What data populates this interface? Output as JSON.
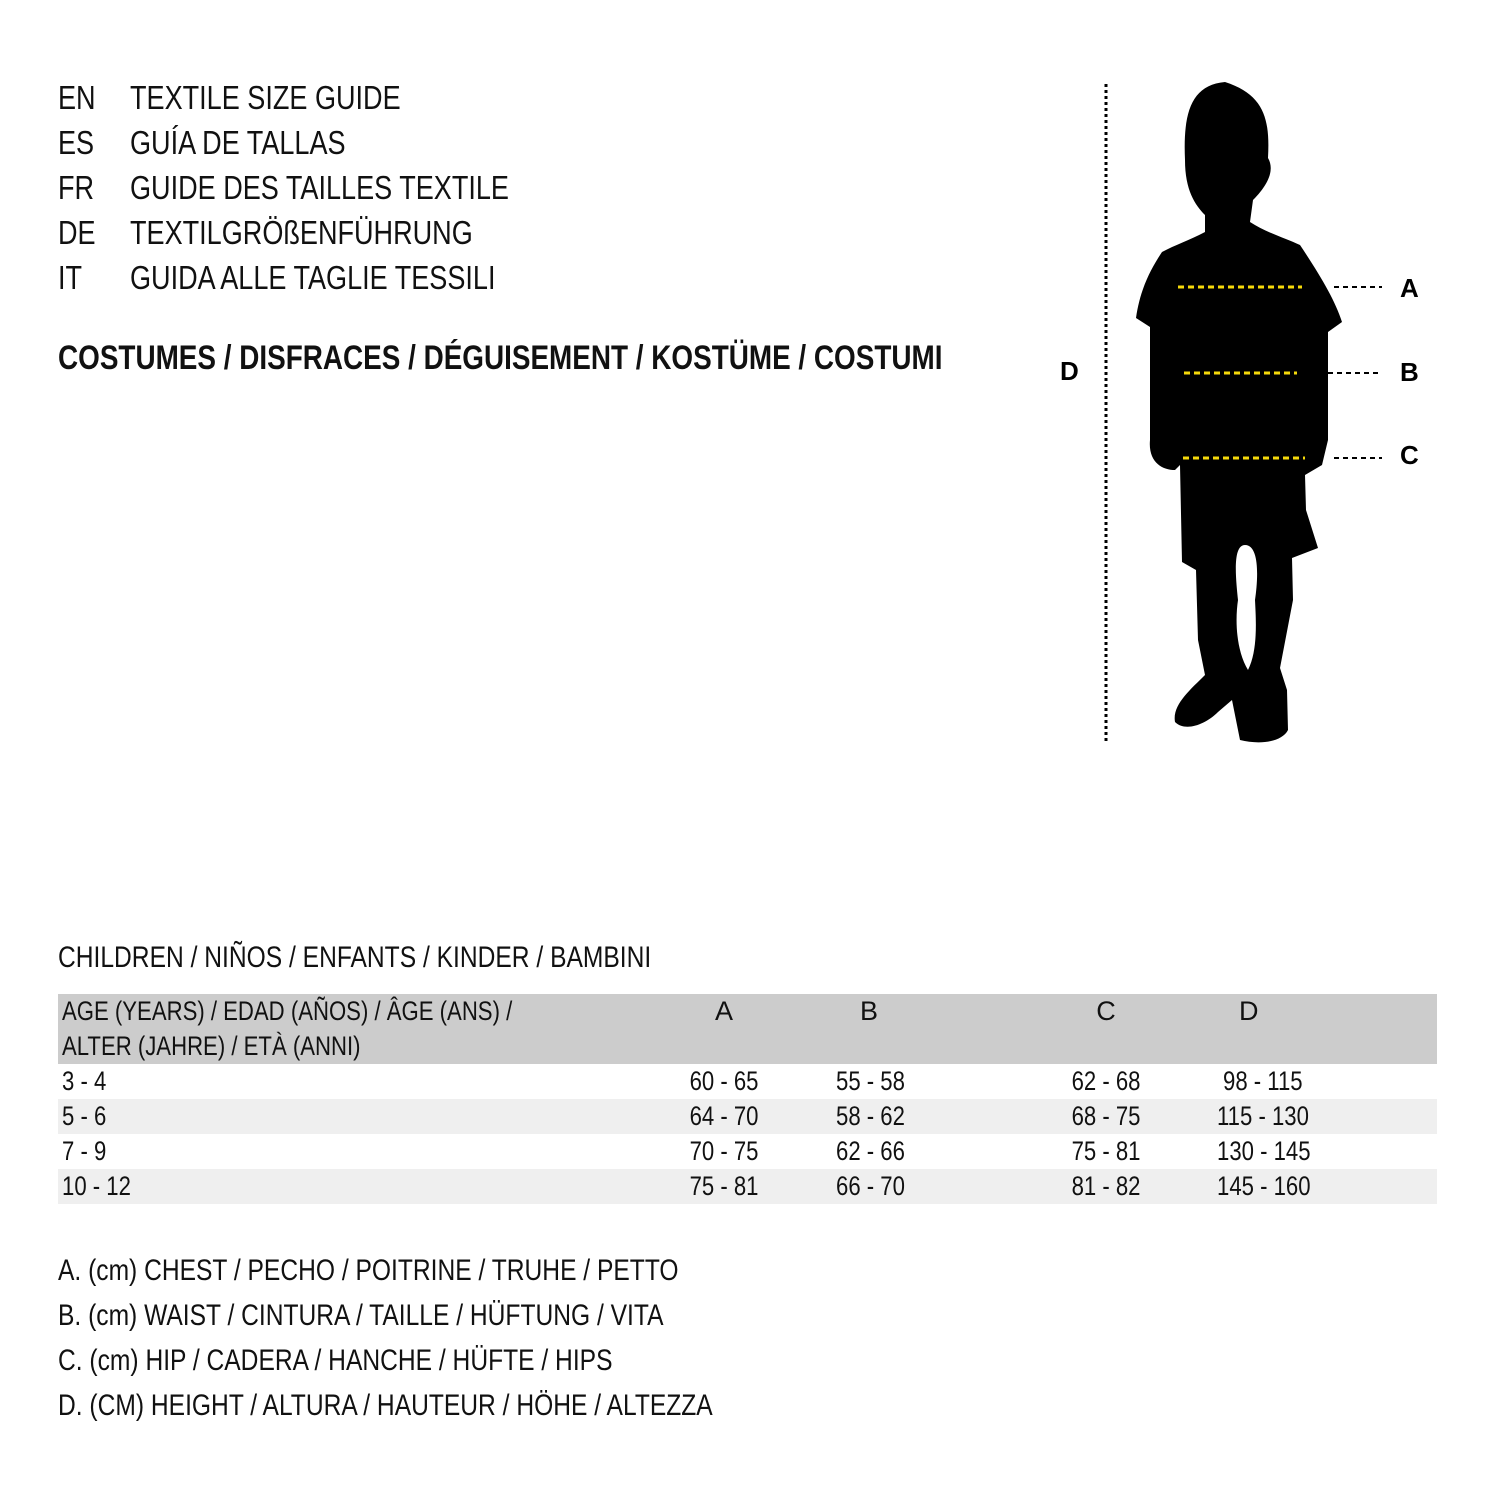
{
  "titles": [
    {
      "code": "EN",
      "text": "TEXTILE SIZE GUIDE"
    },
    {
      "code": "ES",
      "text": "GUÍA DE TALLAS"
    },
    {
      "code": "FR",
      "text": "GUIDE DES TAILLES TEXTILE"
    },
    {
      "code": "DE",
      "text": "TEXTILGRÖßENFÜHRUNG"
    },
    {
      "code": "IT",
      "text": "GUIDA ALLE TAGLIE TESSILI"
    }
  ],
  "category": "COSTUMES / DISFRACES / DÉGUISEMENT / KOSTÜME / COSTUMI",
  "figure": {
    "labels": {
      "a": "A",
      "b": "B",
      "c": "C",
      "d": "D"
    },
    "measure_line_color": "#f5d90a",
    "silhouette_color": "#000000"
  },
  "section_title": "CHILDREN / NIÑOS / ENFANTS / KINDER / BAMBINI",
  "table": {
    "header": {
      "age_line1": "AGE (YEARS) / EDAD (AÑOS) / ÂGE (ANS) /",
      "age_line2": "ALTER (JAHRE) / ETÀ (ANNI)",
      "a": "A",
      "b": "B",
      "c": "C",
      "d": "D"
    },
    "rows": [
      {
        "age": "3 - 4",
        "a": "60 - 65",
        "b": "55 - 58",
        "c": "62 - 68",
        "d": "98 - 115"
      },
      {
        "age": "5 - 6",
        "a": "64 - 70",
        "b": "58 - 62",
        "c": "68 - 75",
        "d": "115 - 130"
      },
      {
        "age": "7 - 9",
        "a": "70 - 75",
        "b": "62 - 66",
        "c": "75 - 81",
        "d": "130 - 145"
      },
      {
        "age": "10 - 12",
        "a": "75 - 81",
        "b": "66 - 70",
        "c": "81 - 82",
        "d": "145 - 160"
      }
    ],
    "header_color": "#cccccc",
    "stripe_color": "#efefef"
  },
  "legend": [
    "A. (cm) CHEST / PECHO / POITRINE / TRUHE / PETTO",
    "B. (cm) WAIST / CINTURA / TAILLE / HÜFTUNG / VITA",
    "C. (cm) HIP / CADERA / HANCHE / HÜFTE / HIPS",
    "D. (CM) HEIGHT / ALTURA / HAUTEUR / HÖHE / ALTEZZA"
  ]
}
